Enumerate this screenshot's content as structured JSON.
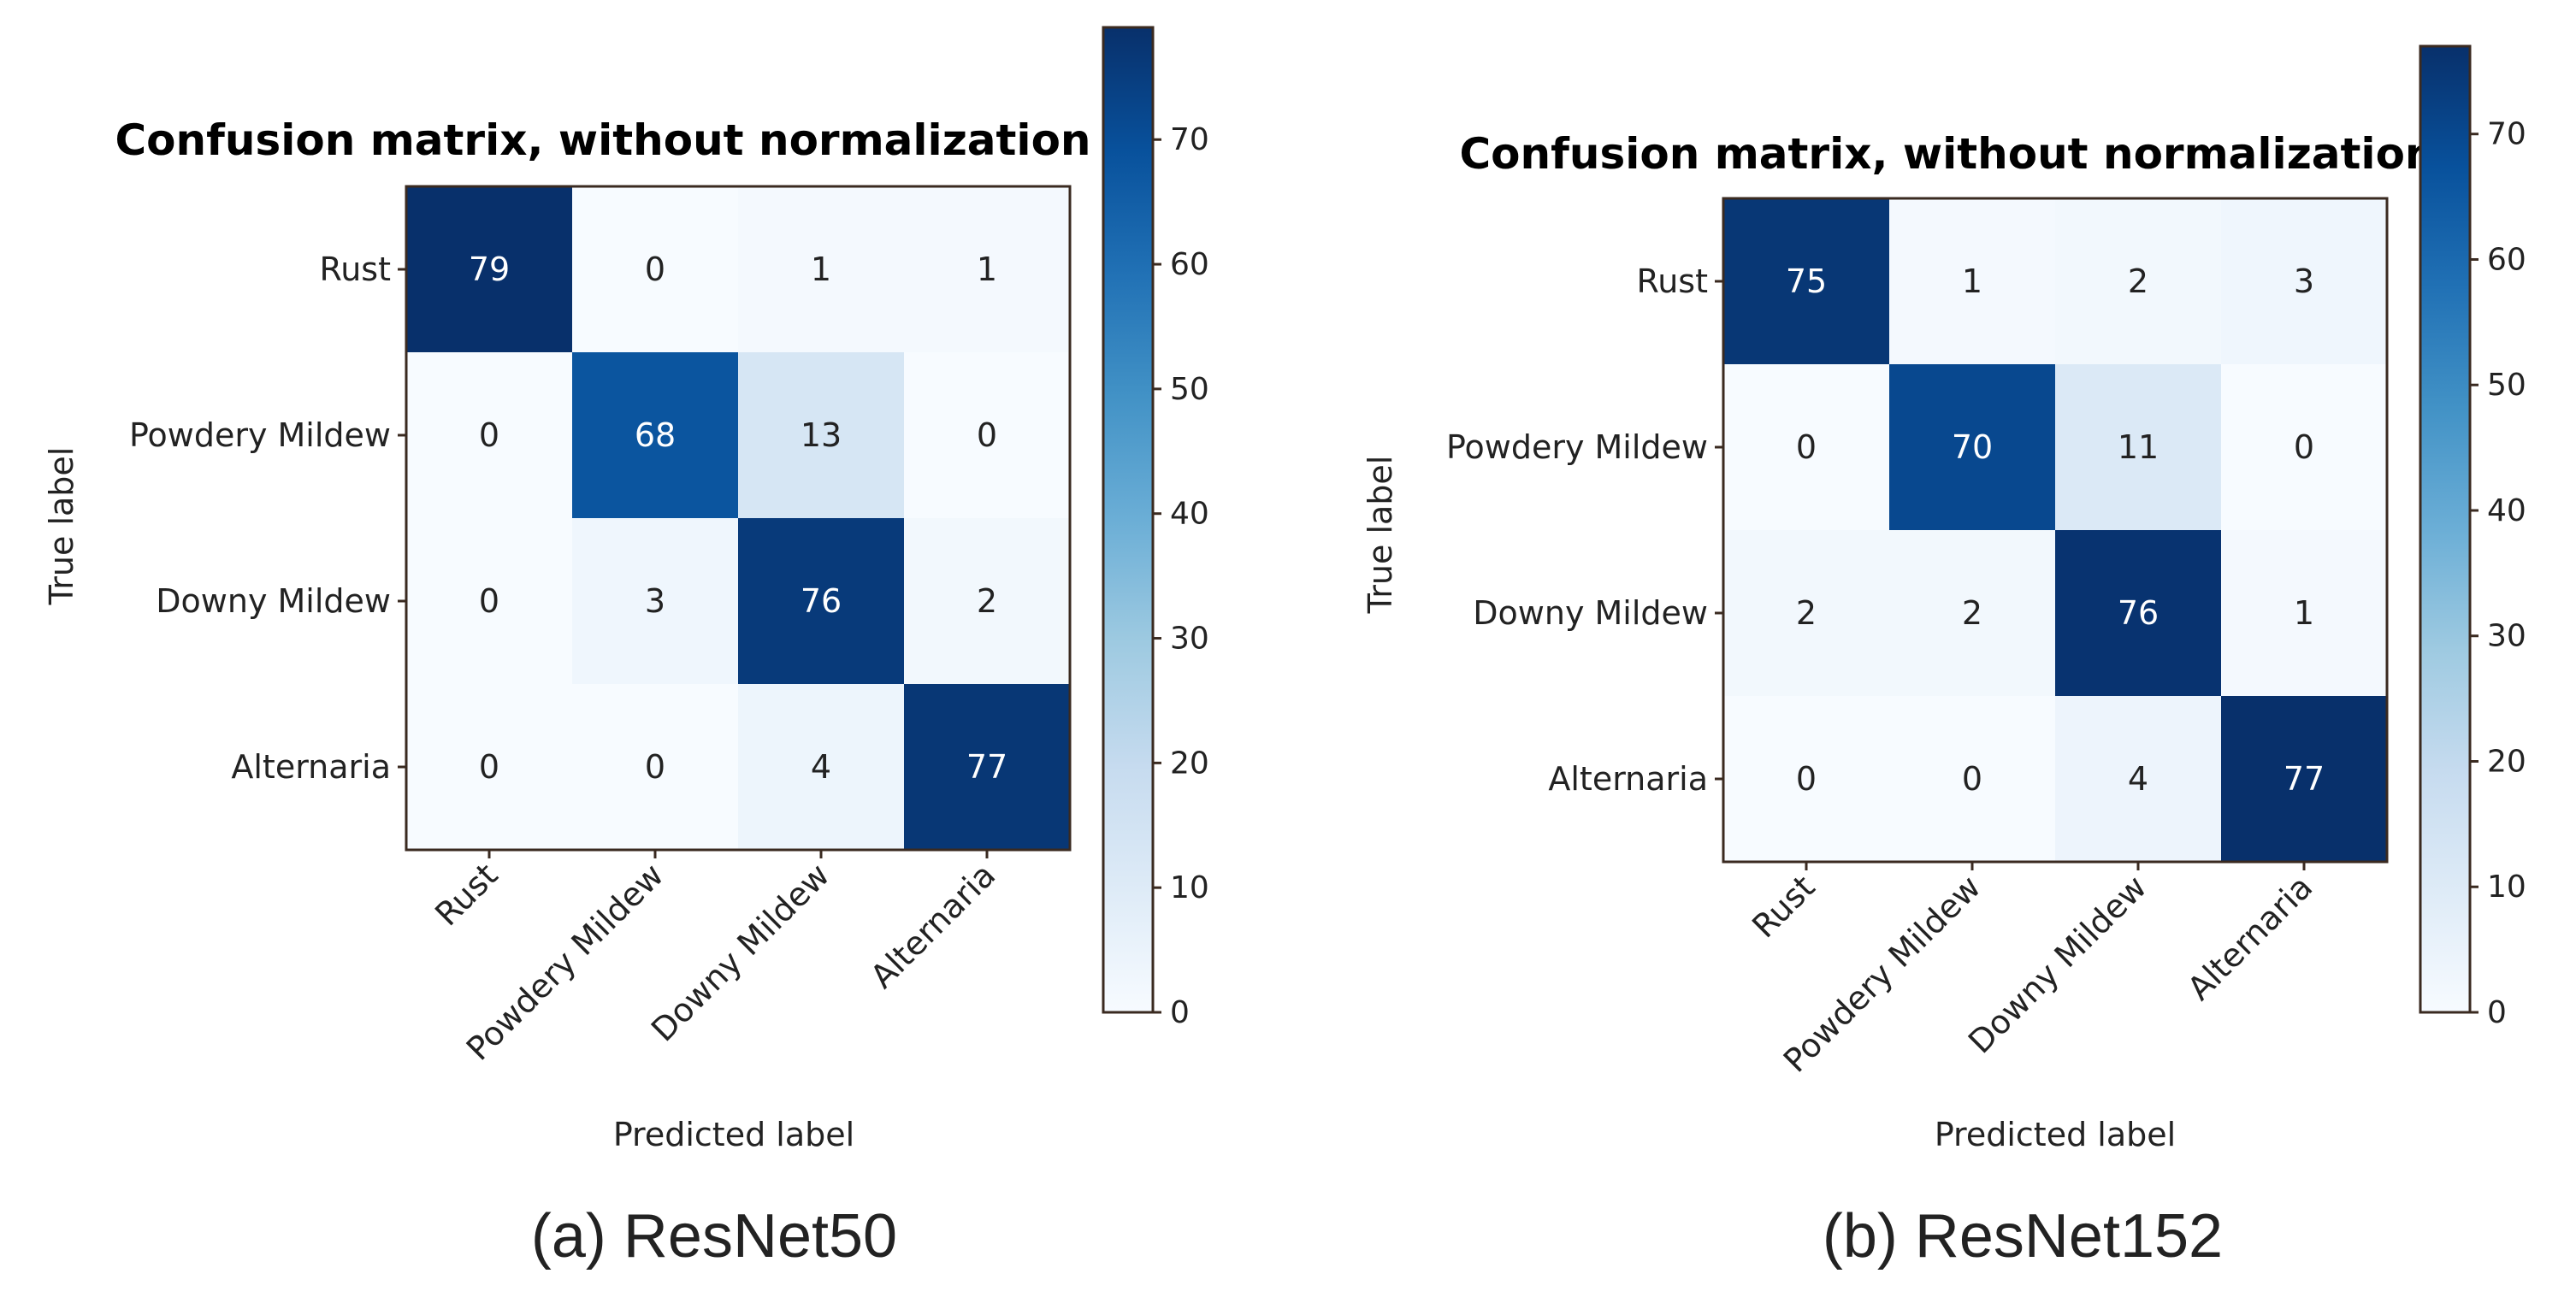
{
  "chart_data": [
    {
      "type": "heatmap",
      "title": "Confusion matrix, without normalization",
      "xlabel": "Predicted label",
      "ylabel": "True label",
      "caption": "(a) ResNet50",
      "row_labels": [
        "Rust",
        "Powdery Mildew",
        "Downy Mildew",
        "Alternaria"
      ],
      "col_labels": [
        "Rust",
        "Powdery Mildew",
        "Downy Mildew",
        "Alternaria"
      ],
      "values": [
        [
          79,
          0,
          1,
          1
        ],
        [
          0,
          68,
          13,
          0
        ],
        [
          0,
          3,
          76,
          2
        ],
        [
          0,
          0,
          4,
          77
        ]
      ],
      "colorbar": {
        "min": 0,
        "max": 79,
        "ticks": [
          0,
          10,
          20,
          30,
          40,
          50,
          60,
          70
        ]
      },
      "colormap": "Blues"
    },
    {
      "type": "heatmap",
      "title": "Confusion matrix, without normalization",
      "xlabel": "Predicted label",
      "ylabel": "True label",
      "caption": "(b) ResNet152",
      "row_labels": [
        "Rust",
        "Powdery Mildew",
        "Downy Mildew",
        "Alternaria"
      ],
      "col_labels": [
        "Rust",
        "Powdery Mildew",
        "Downy Mildew",
        "Alternaria"
      ],
      "values": [
        [
          75,
          1,
          2,
          3
        ],
        [
          0,
          70,
          11,
          0
        ],
        [
          2,
          2,
          76,
          1
        ],
        [
          0,
          0,
          4,
          77
        ]
      ],
      "colorbar": {
        "min": 0,
        "max": 77,
        "ticks": [
          0,
          10,
          20,
          30,
          40,
          50,
          60,
          70
        ]
      },
      "colormap": "Blues"
    }
  ]
}
